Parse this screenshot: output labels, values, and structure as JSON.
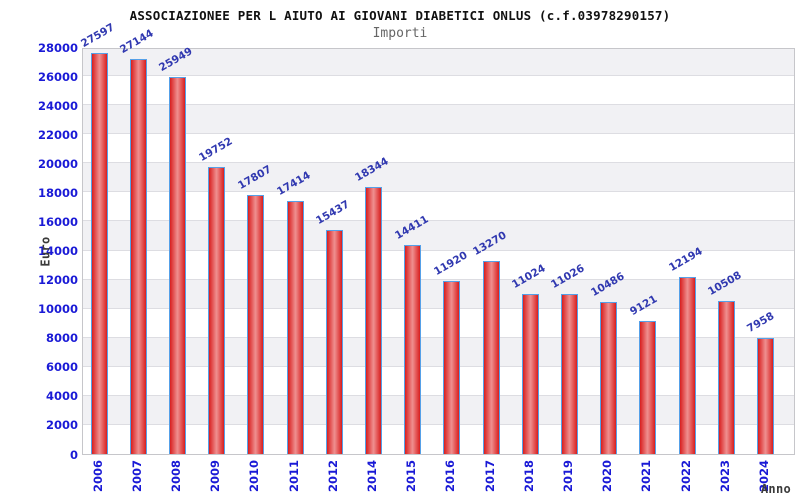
{
  "chart_data": {
    "type": "bar",
    "title": "ASSOCIAZIONEE PER L AIUTO AI GIOVANI DIABETICI ONLUS (c.f.03978290157)",
    "subtitle": "Importi",
    "xlabel": "Anno",
    "ylabel": "Euro",
    "categories": [
      "2006",
      "2007",
      "2008",
      "2009",
      "2010",
      "2011",
      "2012",
      "2014",
      "2015",
      "2016",
      "2017",
      "2018",
      "2019",
      "2020",
      "2021",
      "2022",
      "2023",
      "2024"
    ],
    "values": [
      27597,
      27144,
      25949,
      19752,
      17807,
      17414,
      15437,
      18344,
      14411,
      11920,
      13270,
      11024,
      11026,
      10486,
      9121,
      12194,
      10508,
      7958
    ],
    "ylim": [
      0,
      28000
    ],
    "ytick_step": 2000,
    "yticks": [
      0,
      2000,
      4000,
      6000,
      8000,
      10000,
      12000,
      14000,
      16000,
      18000,
      20000,
      22000,
      24000,
      26000,
      28000
    ],
    "legend": "none",
    "grid": "horizontal-bands",
    "colors": {
      "bar_edge_red": "#d81e1e",
      "bar_center_red": "#ef9090",
      "bar_border_blue": "#55a0e8",
      "tick_label_blue": "#1a1ad6",
      "value_label_blue": "#3038b0",
      "band_gray": "#f1f1f4",
      "grid_line": "#dddde2",
      "plot_border": "#c6c6ca",
      "title_color": "#111111",
      "subtitle_gray": "#666666",
      "axis_title_gray": "#3a3a3a"
    }
  }
}
